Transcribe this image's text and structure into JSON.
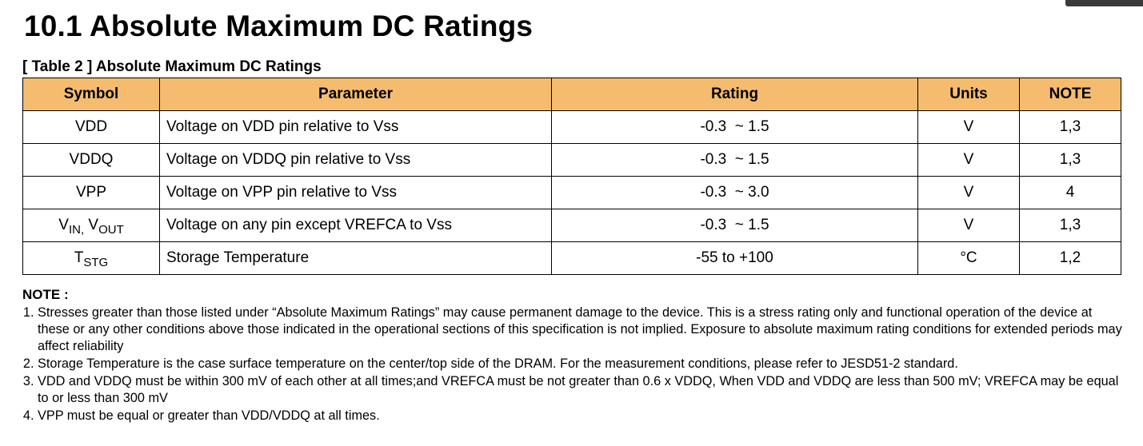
{
  "title": "10.1 Absolute Maximum DC Ratings",
  "table": {
    "caption": "[ Table 2 ] Absolute Maximum DC Ratings",
    "headers": [
      "Symbol",
      "Parameter",
      "Rating",
      "Units",
      "NOTE"
    ],
    "rows": [
      {
        "symbol": "VDD",
        "parameter": "Voltage on VDD pin relative to Vss",
        "rating": "-0.3  ~ 1.5",
        "units": "V",
        "note": "1,3"
      },
      {
        "symbol": "VDDQ",
        "parameter": "Voltage on VDDQ pin relative to Vss",
        "rating": "-0.3  ~ 1.5",
        "units": "V",
        "note": "1,3"
      },
      {
        "symbol": "VPP",
        "parameter": "Voltage on VPP pin relative to Vss",
        "rating": "-0.3  ~ 3.0",
        "units": "V",
        "note": "4"
      },
      {
        "symbol_parts": {
          "v1": "V",
          "sub1": "IN,",
          "v2": "V",
          "sub2": "OUT"
        },
        "parameter": "Voltage on any pin except VREFCA to Vss",
        "rating": "-0.3  ~ 1.5",
        "units": "V",
        "note": "1,3"
      },
      {
        "symbol_parts": {
          "t": "T",
          "sub": "STG"
        },
        "parameter": "Storage Temperature",
        "rating": "-55 to +100",
        "units": "°C",
        "note": "1,2"
      }
    ]
  },
  "notes": {
    "title": "NOTE :",
    "items": [
      "Stresses greater than those listed under “Absolute Maximum Ratings” may cause permanent damage to the device. This is a stress rating only and functional operation of the device at these or any other conditions above those indicated in the operational sections of this specification is not implied. Exposure to absolute maximum rating conditions for extended periods may affect reliability",
      "Storage Temperature is the case surface temperature on the center/top side of the DRAM. For the measurement conditions, please refer to JESD51-2 standard.",
      "VDD and VDDQ must be within 300 mV of each other at all times;and VREFCA must be not greater than 0.6 x VDDQ, When VDD and VDDQ are less than 500 mV; VREFCA may be equal to or less than 300 mV",
      "VPP must be equal or greater than VDD/VDDQ at all times."
    ]
  },
  "colors": {
    "header_fill": "#f5bc6f",
    "border": "#000000"
  }
}
